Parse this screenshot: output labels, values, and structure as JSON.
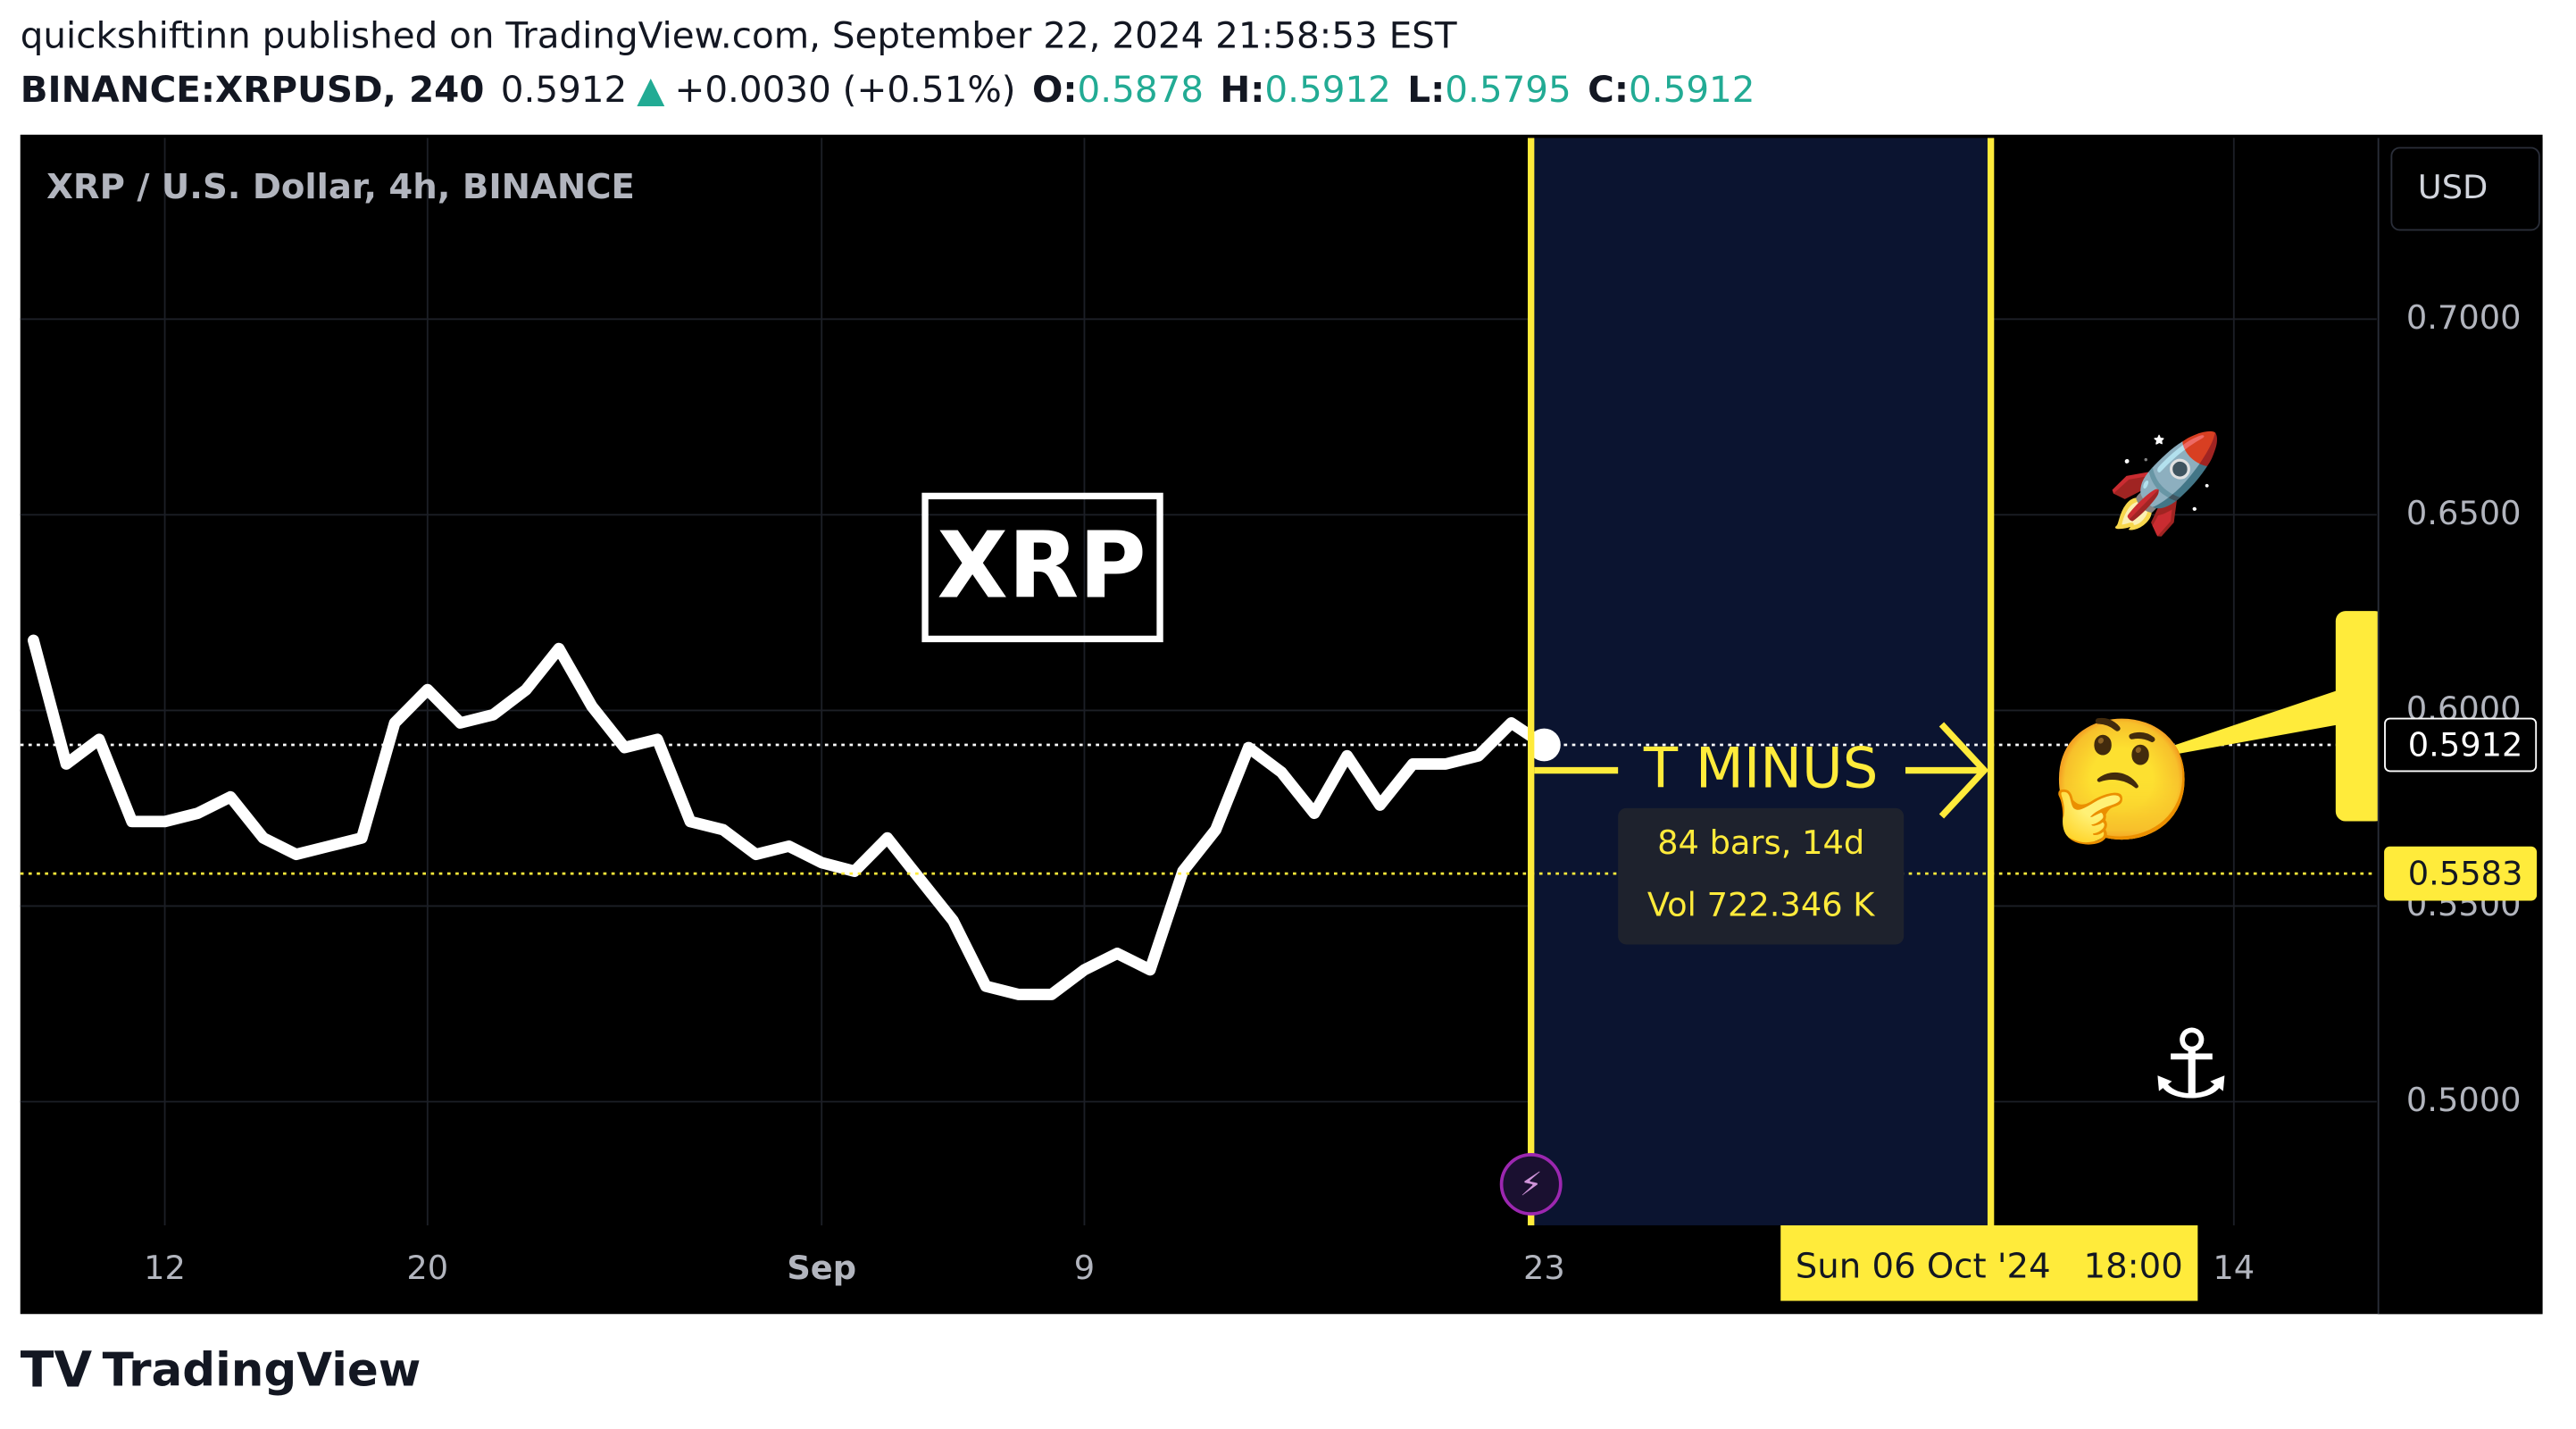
{
  "header": {
    "line1": "quickshiftinn published on TradingView.com, September 22, 2024 21:58:53 EST",
    "symbol": "BINANCE:XRPUSD, 240",
    "last": "0.5912",
    "change": "+0.0030 (+0.51%)",
    "o_label": "O:",
    "o": "0.5878",
    "h_label": "H:",
    "h": "0.5912",
    "l_label": "L:",
    "l": "0.5795",
    "c_label": "C:",
    "c": "0.5912"
  },
  "chart_data": {
    "type": "line",
    "title": "XRP / U.S. Dollar, 4h, BINANCE",
    "currency": "USD",
    "categories": [
      null,
      null,
      null,
      null,
      "12",
      null,
      null,
      null,
      null,
      null,
      null,
      null,
      "20",
      null,
      null,
      null,
      null,
      null,
      null,
      null,
      null,
      null,
      null,
      null,
      "Sep",
      null,
      null,
      null,
      null,
      null,
      null,
      null,
      "9",
      null,
      null,
      null,
      null,
      null,
      null,
      null,
      null,
      null,
      null,
      null,
      null,
      null,
      "23",
      null,
      null,
      null,
      null,
      null,
      null,
      null,
      null,
      null,
      null,
      null,
      null,
      null,
      null,
      null,
      null,
      null,
      null,
      null,
      null,
      "14",
      null,
      null,
      null
    ],
    "series": [
      {
        "name": "XRPUSD",
        "color": "#ffffff",
        "values": [
          0.6179,
          0.5863,
          0.5926,
          0.5716,
          0.5716,
          0.5737,
          0.5779,
          0.5674,
          0.5632,
          0.5653,
          0.5674,
          0.5968,
          0.6053,
          0.5968,
          0.5989,
          0.6053,
          0.6158,
          0.6011,
          0.5905,
          0.5926,
          0.5716,
          0.5695,
          0.5632,
          0.5653,
          0.5611,
          0.5589,
          0.5674,
          0.5568,
          0.5463,
          0.5295,
          0.5274,
          0.5274,
          0.5337,
          0.5379,
          0.5337,
          0.5589,
          0.5695,
          0.5905,
          0.5842,
          0.5737,
          0.5884,
          0.5758,
          0.5863,
          0.5863,
          0.5884,
          0.5968,
          0.5912,
          null,
          null,
          null,
          null,
          null,
          null,
          null,
          null,
          null,
          null,
          null,
          null,
          null,
          null,
          null,
          null,
          null,
          null,
          null,
          null,
          null,
          null,
          null,
          null
        ]
      }
    ],
    "ylim": [
      0.4684,
      0.7463
    ],
    "yticks": [
      {
        "value": 0.5,
        "label": "0.5000"
      },
      {
        "value": 0.55,
        "label": "0.5500"
      },
      {
        "value": 0.6,
        "label": "0.6000"
      },
      {
        "value": 0.65,
        "label": "0.6500"
      },
      {
        "value": 0.7,
        "label": "0.7000"
      }
    ],
    "grid": true,
    "price_lines": [
      {
        "value": 0.5912,
        "color": "#ffffff"
      },
      {
        "value": 0.5583,
        "color": "#ffeb3b"
      }
    ],
    "annotations": {
      "box": "XRP",
      "range_label": "T MINUS",
      "bars": "84 bars, 14d",
      "volume": "Vol 722.346 K",
      "end_date": "Sun 06 Oct '24   18:00",
      "rocket": "🚀",
      "thinking": "🤔",
      "anchor": "⚓"
    }
  },
  "footer": {
    "brand": "TradingView"
  }
}
